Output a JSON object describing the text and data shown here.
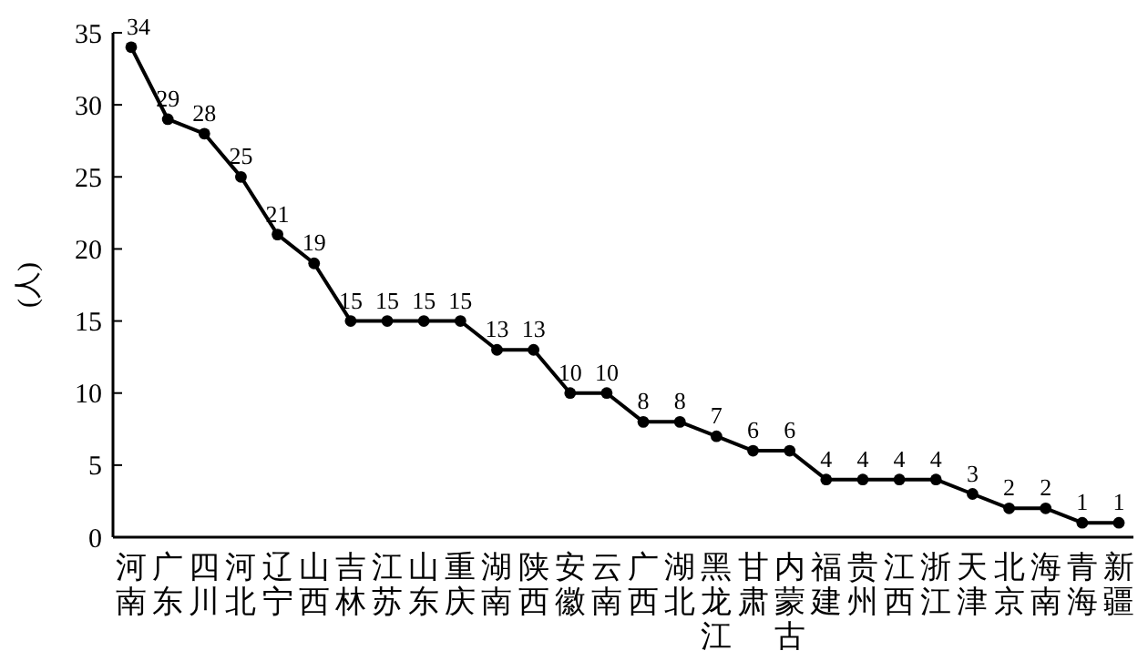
{
  "chart_data": {
    "type": "line",
    "ylabel": "(人)",
    "categories": [
      "河南",
      "广东",
      "四川",
      "河北",
      "辽宁",
      "山西",
      "吉林",
      "江苏",
      "山东",
      "重庆",
      "湖南",
      "陕西",
      "安徽",
      "云南",
      "广西",
      "湖北",
      "黑龙江",
      "甘肃",
      "内蒙古",
      "福建",
      "贵州",
      "江西",
      "浙江",
      "天津",
      "北京",
      "海南",
      "青海",
      "新疆"
    ],
    "series": [
      {
        "color": "#000000",
        "values": [
          34,
          29,
          28,
          25,
          21,
          19,
          15,
          15,
          15,
          15,
          13,
          13,
          10,
          10,
          8,
          8,
          7,
          6,
          6,
          4,
          4,
          4,
          4,
          3,
          2,
          2,
          1,
          1
        ]
      }
    ],
    "ylim": [
      0,
      35
    ],
    "yticks": [
      0,
      5,
      10,
      15,
      20,
      25,
      30,
      35
    ],
    "marker": "circle",
    "line_style": "solid",
    "data_labels": true
  }
}
